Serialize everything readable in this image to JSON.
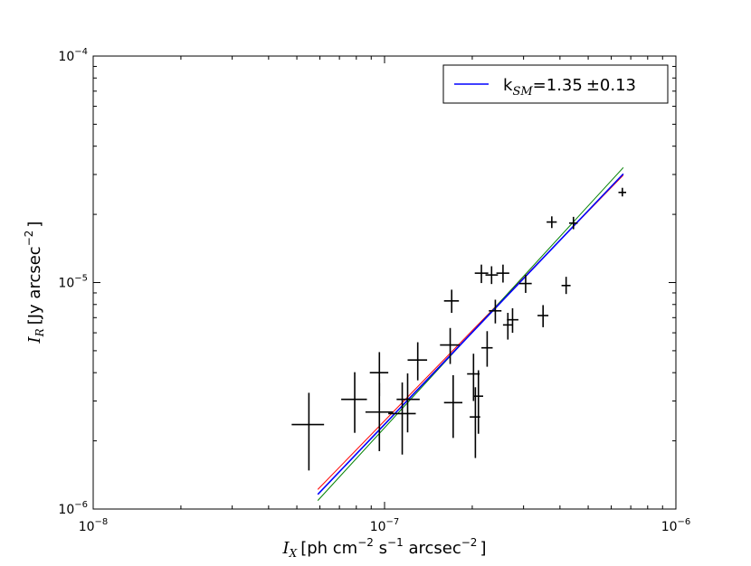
{
  "chart_data": {
    "type": "scatter",
    "xscale": "log",
    "yscale": "log",
    "xlim": [
      1e-08,
      1e-06
    ],
    "ylim": [
      1e-06,
      0.0001
    ],
    "xlabel": {
      "var": "I",
      "sub": "X",
      "text": "[ph cm",
      "sup1": "−2",
      "mid": " s",
      "sup2": "−1",
      "end": " arcsec",
      "sup3": "−2",
      "close": "]"
    },
    "ylabel": {
      "var": "I",
      "sub": "R",
      "text": "[Jy arcsec",
      "sup": "−2",
      "close": "]"
    },
    "x_ticks": [
      {
        "value": 1e-08,
        "base": "10",
        "exp": "−8"
      },
      {
        "value": 1e-07,
        "base": "10",
        "exp": "−7"
      },
      {
        "value": 1e-06,
        "base": "10",
        "exp": "−6"
      }
    ],
    "y_ticks": [
      {
        "value": 1e-06,
        "base": "10",
        "exp": "−6"
      },
      {
        "value": 1e-05,
        "base": "10",
        "exp": "−5"
      },
      {
        "value": 0.0001,
        "base": "10",
        "exp": "−4"
      }
    ],
    "legend": {
      "position": "upper-right",
      "label_prefix": "k",
      "label_sub": "SM",
      "label_value": "=1.35",
      "label_pm": "±",
      "label_err": "0.13",
      "color": "#0000ff"
    },
    "fit_lines": [
      {
        "color": "#ff0000",
        "x": [
          5.9e-08,
          6.6e-07
        ],
        "y": [
          1.22e-06,
          2.98e-05
        ]
      },
      {
        "color": "#008000",
        "x": [
          5.9e-08,
          6.6e-07
        ],
        "y": [
          1.09e-06,
          3.22e-05
        ]
      },
      {
        "color": "#0000ff",
        "x": [
          5.9e-08,
          6.6e-07
        ],
        "y": [
          1.16e-06,
          3.02e-05
        ]
      }
    ],
    "points": [
      {
        "x": 5.5e-08,
        "xlo": 4.8e-08,
        "xhi": 6.2e-08,
        "y": 2.36e-06,
        "ylo": 1.48e-06,
        "yhi": 3.26e-06
      },
      {
        "x": 7.9e-08,
        "xlo": 7.1e-08,
        "xhi": 8.7e-08,
        "y": 3.05e-06,
        "ylo": 2.17e-06,
        "yhi": 4.02e-06
      },
      {
        "x": 9.6e-08,
        "xlo": 8.9e-08,
        "xhi": 1.03e-07,
        "y": 4e-06,
        "ylo": 3.15e-06,
        "yhi": 4.93e-06
      },
      {
        "x": 9.6e-08,
        "xlo": 8.6e-08,
        "xhi": 1.07e-07,
        "y": 2.68e-06,
        "ylo": 1.8e-06,
        "yhi": 3.6e-06
      },
      {
        "x": 1.15e-07,
        "xlo": 1.03e-07,
        "xhi": 1.28e-07,
        "y": 2.64e-06,
        "ylo": 1.74e-06,
        "yhi": 3.62e-06
      },
      {
        "x": 1.2e-07,
        "xlo": 1.1e-07,
        "xhi": 1.32e-07,
        "y": 3.05e-06,
        "ylo": 2.18e-06,
        "yhi": 3.97e-06
      },
      {
        "x": 1.3e-07,
        "xlo": 1.2e-07,
        "xhi": 1.4e-07,
        "y": 4.55e-06,
        "ylo": 3.7e-06,
        "yhi": 5.45e-06
      },
      {
        "x": 1.68e-07,
        "xlo": 1.55e-07,
        "xhi": 1.81e-07,
        "y": 5.3e-06,
        "ylo": 4.37e-06,
        "yhi": 6.3e-06
      },
      {
        "x": 1.7e-07,
        "xlo": 1.6e-07,
        "xhi": 1.8e-07,
        "y": 8.3e-06,
        "ylo": 7.35e-06,
        "yhi": 9.3e-06
      },
      {
        "x": 1.72e-07,
        "xlo": 1.6e-07,
        "xhi": 1.85e-07,
        "y": 2.95e-06,
        "ylo": 2.06e-06,
        "yhi": 3.9e-06
      },
      {
        "x": 2.02e-07,
        "xlo": 1.92e-07,
        "xhi": 2.12e-07,
        "y": 3.95e-06,
        "ylo": 3e-06,
        "yhi": 4.85e-06
      },
      {
        "x": 2.05e-07,
        "xlo": 1.96e-07,
        "xhi": 2.13e-07,
        "y": 2.55e-06,
        "ylo": 1.68e-06,
        "yhi": 3.45e-06
      },
      {
        "x": 2.1e-07,
        "xlo": 2.02e-07,
        "xhi": 2.18e-07,
        "y": 3.15e-06,
        "ylo": 2.15e-06,
        "yhi": 4.1e-06
      },
      {
        "x": 2.15e-07,
        "xlo": 2.04e-07,
        "xhi": 2.27e-07,
        "y": 1.1e-05,
        "ylo": 9.95e-06,
        "yhi": 1.2e-05
      },
      {
        "x": 2.25e-07,
        "xlo": 2.15e-07,
        "xhi": 2.35e-07,
        "y": 5.15e-06,
        "ylo": 4.25e-06,
        "yhi": 6.1e-06
      },
      {
        "x": 2.33e-07,
        "xlo": 2.22e-07,
        "xhi": 2.45e-07,
        "y": 1.08e-05,
        "ylo": 9.85e-06,
        "yhi": 1.18e-05
      },
      {
        "x": 2.4e-07,
        "xlo": 2.28e-07,
        "xhi": 2.52e-07,
        "y": 7.5e-06,
        "ylo": 6.6e-06,
        "yhi": 8.4e-06
      },
      {
        "x": 2.55e-07,
        "xlo": 2.42e-07,
        "xhi": 2.68e-07,
        "y": 1.1e-05,
        "ylo": 1e-05,
        "yhi": 1.2e-05
      },
      {
        "x": 2.65e-07,
        "xlo": 2.55e-07,
        "xhi": 2.76e-07,
        "y": 6.5e-06,
        "ylo": 5.6e-06,
        "yhi": 7.35e-06
      },
      {
        "x": 2.75e-07,
        "xlo": 2.63e-07,
        "xhi": 2.88e-07,
        "y": 6.85e-06,
        "ylo": 6e-06,
        "yhi": 7.7e-06
      },
      {
        "x": 3.05e-07,
        "xlo": 2.9e-07,
        "xhi": 3.2e-07,
        "y": 9.9e-06,
        "ylo": 9e-06,
        "yhi": 1.08e-05
      },
      {
        "x": 3.5e-07,
        "xlo": 3.35e-07,
        "xhi": 3.65e-07,
        "y": 7.15e-06,
        "ylo": 6.35e-06,
        "yhi": 7.95e-06
      },
      {
        "x": 3.75e-07,
        "xlo": 3.6e-07,
        "xhi": 3.9e-07,
        "y": 1.85e-05,
        "ylo": 1.74e-05,
        "yhi": 1.96e-05
      },
      {
        "x": 4.2e-07,
        "xlo": 4.05e-07,
        "xhi": 4.35e-07,
        "y": 9.7e-06,
        "ylo": 8.9e-06,
        "yhi": 1.06e-05
      },
      {
        "x": 4.45e-07,
        "xlo": 4.3e-07,
        "xhi": 4.6e-07,
        "y": 1.83e-05,
        "ylo": 1.72e-05,
        "yhi": 1.95e-05
      },
      {
        "x": 6.55e-07,
        "xlo": 6.35e-07,
        "xhi": 6.75e-07,
        "y": 2.5e-05,
        "ylo": 2.4e-05,
        "yhi": 2.62e-05
      }
    ]
  }
}
